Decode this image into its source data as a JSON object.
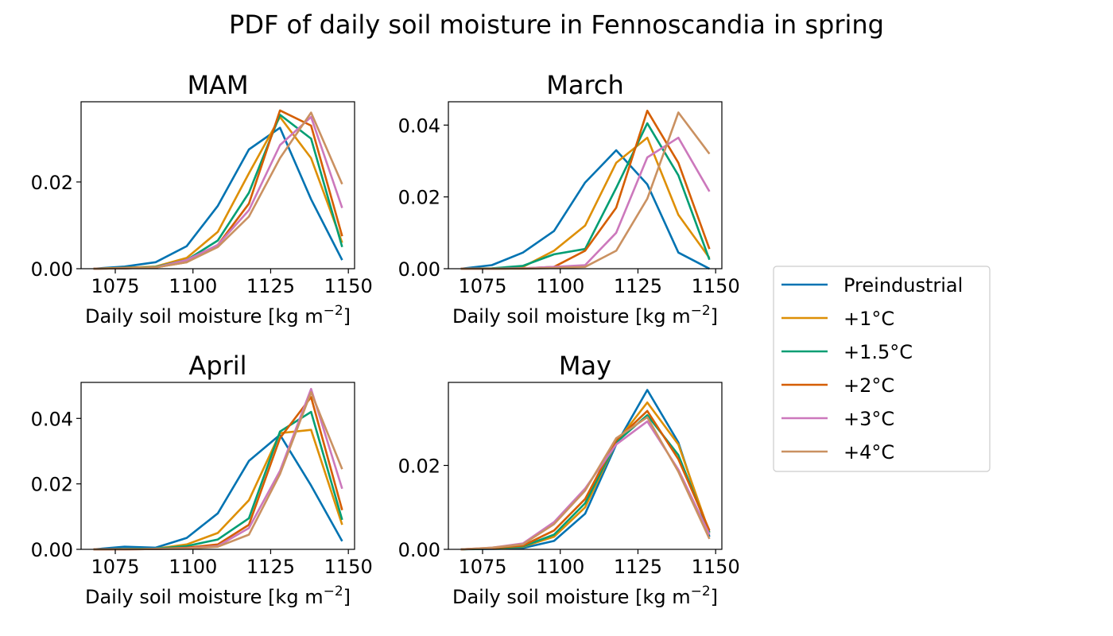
{
  "figure": {
    "title": "PDF of daily soil moisture in Fennoscandia in spring"
  },
  "colors": {
    "Preindustrial": "#0173b2",
    "+1°C": "#de8f05",
    "+1.5°C": "#029e73",
    "+2°C": "#d55e00",
    "+3°C": "#cc78bc",
    "+4°C": "#ca9161"
  },
  "legend": {
    "placement": "right",
    "entries": [
      "Preindustrial",
      "+1°C",
      "+1.5°C",
      "+2°C",
      "+3°C",
      "+4°C"
    ]
  },
  "chart_data": [
    {
      "type": "line",
      "title": "MAM",
      "xlabel": "Daily soil moisture [kg m",
      "xlabel_sup": "−2",
      "xlabel_end": "]",
      "xlim": [
        1064,
        1152
      ],
      "ylim": [
        0,
        0.0385
      ],
      "xticks": [
        1075,
        1100,
        1125,
        1150
      ],
      "yticks": [
        0,
        0.02
      ],
      "yticklabels": [
        "0.00",
        "0.02"
      ],
      "x": [
        1068,
        1078,
        1088,
        1098,
        1108,
        1118,
        1128,
        1138,
        1148
      ],
      "series": [
        {
          "name": "Preindustrial",
          "values": [
            0.0,
            0.0005,
            0.0015,
            0.0052,
            0.0145,
            0.0275,
            0.0325,
            0.016,
            0.002
          ]
        },
        {
          "name": "+1°C",
          "values": [
            0.0,
            0.0002,
            0.0005,
            0.0025,
            0.0085,
            0.022,
            0.035,
            0.0255,
            0.006
          ]
        },
        {
          "name": "+1.5°C",
          "values": [
            0.0,
            0.0001,
            0.0004,
            0.002,
            0.0065,
            0.0175,
            0.0355,
            0.03,
            0.005
          ]
        },
        {
          "name": "+2°C",
          "values": [
            0.0,
            0.0001,
            0.0003,
            0.0015,
            0.0055,
            0.015,
            0.0365,
            0.033,
            0.0075
          ]
        },
        {
          "name": "+3°C",
          "values": [
            0.0,
            0.0001,
            0.0003,
            0.002,
            0.0055,
            0.0135,
            0.0285,
            0.035,
            0.014
          ]
        },
        {
          "name": "+4°C",
          "values": [
            0.0,
            0.0001,
            0.0003,
            0.0015,
            0.005,
            0.012,
            0.0255,
            0.036,
            0.0195
          ]
        }
      ]
    },
    {
      "type": "line",
      "title": "March",
      "xlabel": "Daily soil moisture [kg m",
      "xlabel_sup": "−2",
      "xlabel_end": "]",
      "xlim": [
        1064,
        1152
      ],
      "ylim": [
        0,
        0.0465
      ],
      "xticks": [
        1075,
        1100,
        1125,
        1150
      ],
      "yticks": [
        0,
        0.02,
        0.04
      ],
      "yticklabels": [
        "0.00",
        "0.02",
        "0.04"
      ],
      "x": [
        1068,
        1078,
        1088,
        1098,
        1108,
        1118,
        1128,
        1138,
        1148
      ],
      "series": [
        {
          "name": "Preindustrial",
          "values": [
            0.0,
            0.001,
            0.0045,
            0.0105,
            0.024,
            0.033,
            0.0235,
            0.0045,
            0.0
          ]
        },
        {
          "name": "+1°C",
          "values": [
            0.0,
            0.0001,
            0.0005,
            0.005,
            0.012,
            0.0295,
            0.0365,
            0.015,
            0.003
          ]
        },
        {
          "name": "+1.5°C",
          "values": [
            0.0,
            0.0001,
            0.0008,
            0.004,
            0.0055,
            0.0225,
            0.0405,
            0.026,
            0.0025
          ]
        },
        {
          "name": "+2°C",
          "values": [
            0.0,
            0.0,
            0.0001,
            0.0005,
            0.005,
            0.017,
            0.044,
            0.0295,
            0.0055
          ]
        },
        {
          "name": "+3°C",
          "values": [
            0.0,
            0.0,
            0.0001,
            0.0005,
            0.001,
            0.01,
            0.031,
            0.0365,
            0.0215
          ]
        },
        {
          "name": "+4°C",
          "values": [
            0.0,
            0.0,
            0.0,
            0.0002,
            0.0005,
            0.005,
            0.0195,
            0.0435,
            0.032
          ]
        }
      ]
    },
    {
      "type": "line",
      "title": "April",
      "xlabel": "Daily soil moisture [kg m",
      "xlabel_sup": "−2",
      "xlabel_end": "]",
      "xlim": [
        1064,
        1152
      ],
      "ylim": [
        0,
        0.051
      ],
      "xticks": [
        1075,
        1100,
        1125,
        1150
      ],
      "yticks": [
        0,
        0.02,
        0.04
      ],
      "yticklabels": [
        "0.00",
        "0.02",
        "0.04"
      ],
      "x": [
        1068,
        1078,
        1088,
        1098,
        1108,
        1118,
        1128,
        1138,
        1148
      ],
      "series": [
        {
          "name": "Preindustrial",
          "values": [
            0.0,
            0.0008,
            0.0005,
            0.0035,
            0.011,
            0.027,
            0.035,
            0.0195,
            0.0025
          ]
        },
        {
          "name": "+1°C",
          "values": [
            0.0,
            0.0001,
            0.0002,
            0.0015,
            0.005,
            0.015,
            0.0355,
            0.0365,
            0.0075
          ]
        },
        {
          "name": "+1.5°C",
          "values": [
            0.0,
            0.0001,
            0.0002,
            0.001,
            0.003,
            0.0095,
            0.036,
            0.042,
            0.009
          ]
        },
        {
          "name": "+2°C",
          "values": [
            0.0,
            0.0,
            0.0001,
            0.0005,
            0.0015,
            0.0075,
            0.034,
            0.0465,
            0.012
          ]
        },
        {
          "name": "+3°C",
          "values": [
            0.0,
            0.0,
            0.0001,
            0.0003,
            0.001,
            0.0065,
            0.024,
            0.049,
            0.0185
          ]
        },
        {
          "name": "+4°C",
          "values": [
            0.0,
            0.0,
            0.0001,
            0.0002,
            0.0008,
            0.0045,
            0.023,
            0.048,
            0.0245
          ]
        }
      ]
    },
    {
      "type": "line",
      "title": "May",
      "xlabel": "Daily soil moisture [kg m",
      "xlabel_sup": "−2",
      "xlabel_end": "]",
      "xlim": [
        1064,
        1152
      ],
      "ylim": [
        0,
        0.0398
      ],
      "xticks": [
        1075,
        1100,
        1125,
        1150
      ],
      "yticks": [
        0,
        0.02
      ],
      "yticklabels": [
        "0.00",
        "0.02"
      ],
      "x": [
        1068,
        1078,
        1088,
        1098,
        1108,
        1118,
        1128,
        1138,
        1148
      ],
      "series": [
        {
          "name": "Preindustrial",
          "values": [
            0.0,
            0.0001,
            0.0003,
            0.002,
            0.0085,
            0.025,
            0.038,
            0.0255,
            0.003
          ]
        },
        {
          "name": "+1°C",
          "values": [
            0.0,
            0.0002,
            0.0006,
            0.003,
            0.01,
            0.0255,
            0.035,
            0.025,
            0.004
          ]
        },
        {
          "name": "+1.5°C",
          "values": [
            0.0,
            0.0002,
            0.0007,
            0.0035,
            0.011,
            0.0255,
            0.032,
            0.0225,
            0.004
          ]
        },
        {
          "name": "+2°C",
          "values": [
            0.0,
            0.0003,
            0.0009,
            0.0045,
            0.012,
            0.026,
            0.033,
            0.0215,
            0.0045
          ]
        },
        {
          "name": "+3°C",
          "values": [
            0.0,
            0.0004,
            0.0014,
            0.0065,
            0.0145,
            0.025,
            0.0305,
            0.019,
            0.0035
          ]
        },
        {
          "name": "+4°C",
          "values": [
            0.0,
            0.0004,
            0.0012,
            0.006,
            0.014,
            0.0265,
            0.0315,
            0.0185,
            0.0025
          ]
        }
      ]
    }
  ]
}
